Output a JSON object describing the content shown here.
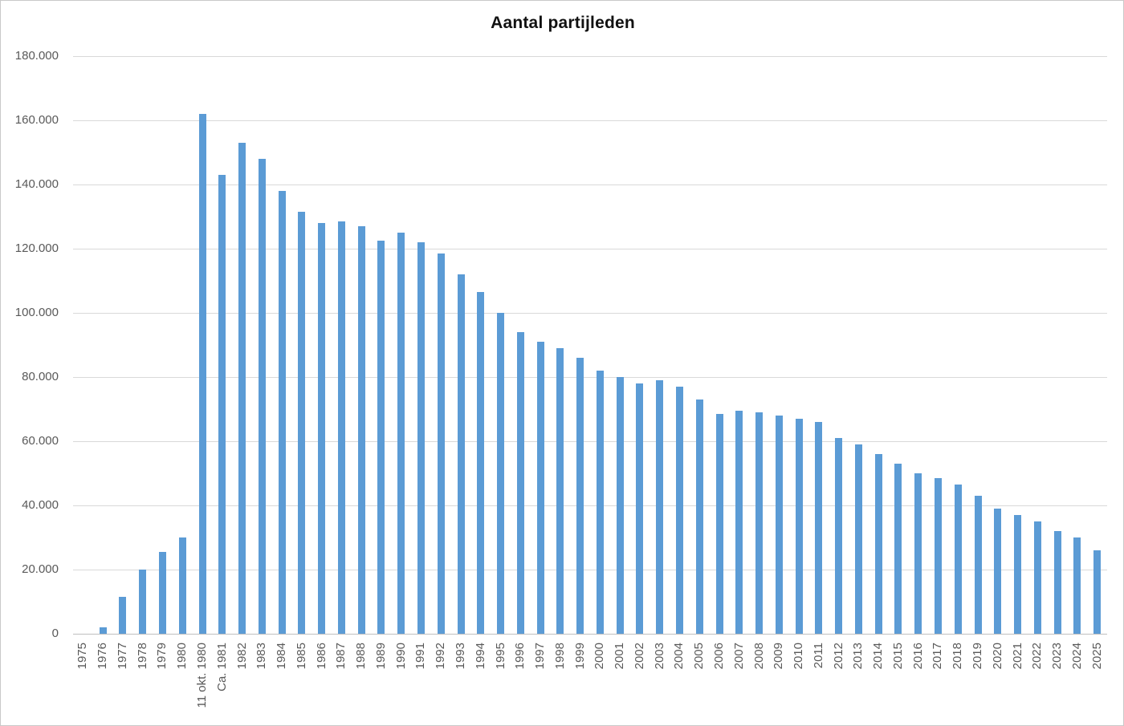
{
  "window": {
    "background": "#ffffff",
    "border_color": "#c9c9c9"
  },
  "chart_data": {
    "type": "bar",
    "title": "Aantal partijleden",
    "xlabel": "",
    "ylabel": "",
    "legend": "none",
    "grid": "horizontal",
    "ylim": [
      0,
      180000
    ],
    "ytick_interval": 20000,
    "ytick_labels": [
      "0",
      "20.000",
      "40.000",
      "60.000",
      "80.000",
      "100.000",
      "120.000",
      "140.000",
      "160.000",
      "180.000"
    ],
    "bar_color": "#5b9bd5",
    "gridline_color": "#d9d9d9",
    "axis_line_color": "#bfbfbf",
    "tick_label_color": "#595959",
    "title_color": "#111111",
    "categories": [
      "1975",
      "1976",
      "1977",
      "1978",
      "1979",
      "1980",
      "11 okt. 1980",
      "Ca. 1981",
      "1982",
      "1983",
      "1984",
      "1985",
      "1986",
      "1987",
      "1988",
      "1989",
      "1990",
      "1991",
      "1992",
      "1993",
      "1994",
      "1995",
      "1996",
      "1997",
      "1998",
      "1999",
      "2000",
      "2001",
      "2002",
      "2003",
      "2004",
      "2005",
      "2006",
      "2007",
      "2008",
      "2009",
      "2010",
      "2011",
      "2012",
      "2013",
      "2014",
      "2015",
      "2016",
      "2017",
      "2018",
      "2019",
      "2020",
      "2021",
      "2022",
      "2023",
      "2024",
      "2025"
    ],
    "values": [
      0,
      2000,
      11500,
      20000,
      25500,
      30000,
      162000,
      143000,
      153000,
      148000,
      138000,
      131500,
      128000,
      128500,
      127000,
      122500,
      125000,
      122000,
      118500,
      112000,
      106500,
      100000,
      94000,
      91000,
      89000,
      86000,
      82000,
      80000,
      78000,
      79000,
      77000,
      73000,
      68500,
      69500,
      69000,
      68000,
      67000,
      66000,
      61000,
      59000,
      56000,
      53000,
      50000,
      48500,
      46500,
      43000,
      39000,
      37000,
      35000,
      32000,
      30000,
      26000
    ]
  }
}
